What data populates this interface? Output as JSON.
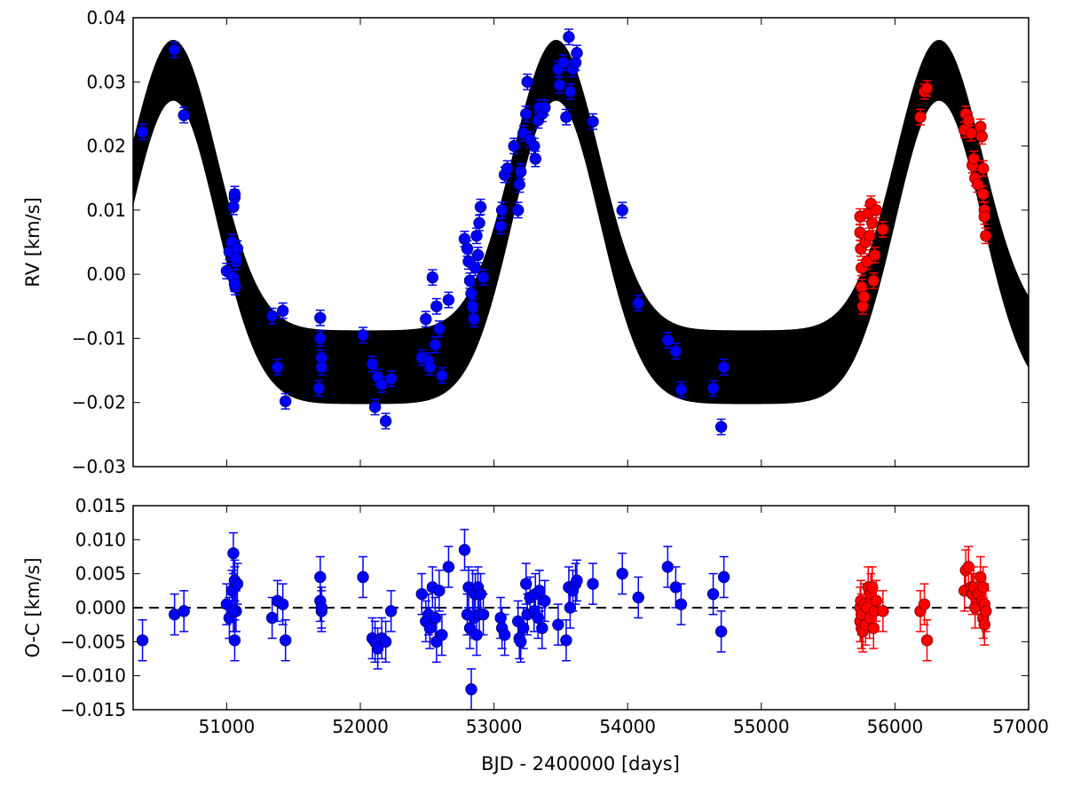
{
  "chart_data": [
    {
      "type": "scatter",
      "panel": "rv",
      "ylabel": "RV [km/s]",
      "xlim": [
        50300,
        57000
      ],
      "ylim": [
        -0.03,
        0.04
      ],
      "xticks": [
        51000,
        52000,
        53000,
        54000,
        55000,
        56000,
        57000
      ],
      "yticks": [
        -0.03,
        -0.02,
        -0.01,
        0.0,
        0.01,
        0.02,
        0.03,
        0.04
      ],
      "ytick_labels": [
        "−0.03",
        "−0.02",
        "−0.01",
        "0.00",
        "0.01",
        "0.02",
        "0.03",
        "0.04"
      ],
      "xtick_labels_shown": false,
      "model_band": {
        "color": "#000000",
        "period": 2865,
        "phase_peak_x": 50600,
        "center_min": -0.0145,
        "center_max": 0.0318,
        "width_at_min": 0.0115,
        "width_at_max": 0.0095
      },
      "series": [
        {
          "color": "#0000ff",
          "points": [
            [
              50370,
              0.0222
            ],
            [
              50610,
              0.035
            ],
            [
              50680,
              0.0248
            ],
            [
              51000,
              0.0005
            ],
            [
              51020,
              0.0035
            ],
            [
              51040,
              0.005
            ],
            [
              51050,
              0.0105
            ],
            [
              51060,
              0.012
            ],
            [
              51060,
              0.0125
            ],
            [
              51050,
              -0.0005
            ],
            [
              51065,
              -0.002
            ],
            [
              51070,
              0.002
            ],
            [
              51080,
              0.004
            ],
            [
              51070,
              0.0025
            ],
            [
              51060,
              -0.0015
            ],
            [
              51340,
              -0.0065
            ],
            [
              51380,
              -0.0145
            ],
            [
              51420,
              -0.0057
            ],
            [
              51440,
              -0.0198
            ],
            [
              51700,
              -0.0068
            ],
            [
              51700,
              -0.01
            ],
            [
              51710,
              -0.013
            ],
            [
              51710,
              -0.0145
            ],
            [
              51690,
              -0.0178
            ],
            [
              52020,
              -0.0095
            ],
            [
              52090,
              -0.014
            ],
            [
              52110,
              -0.0207
            ],
            [
              52130,
              -0.016
            ],
            [
              52160,
              -0.0172
            ],
            [
              52190,
              -0.0229
            ],
            [
              52230,
              -0.0163
            ],
            [
              52460,
              -0.013
            ],
            [
              52490,
              -0.007
            ],
            [
              52510,
              -0.0135
            ],
            [
              52520,
              -0.0145
            ],
            [
              52540,
              -0.0005
            ],
            [
              52560,
              -0.011
            ],
            [
              52570,
              -0.005
            ],
            [
              52590,
              -0.0085
            ],
            [
              52610,
              -0.0158
            ],
            [
              52660,
              -0.004
            ],
            [
              52780,
              0.0055
            ],
            [
              52800,
              0.004
            ],
            [
              52810,
              0.002
            ],
            [
              52820,
              -0.001
            ],
            [
              52830,
              -0.003
            ],
            [
              52840,
              -0.005
            ],
            [
              52850,
              -0.007
            ],
            [
              52860,
              0.001
            ],
            [
              52870,
              0.006
            ],
            [
              52880,
              0.003
            ],
            [
              52890,
              0.008
            ],
            [
              52900,
              0.0105
            ],
            [
              52920,
              -0.0005
            ],
            [
              53050,
              0.0075
            ],
            [
              53060,
              0.01
            ],
            [
              53080,
              0.0155
            ],
            [
              53100,
              0.0165
            ],
            [
              53150,
              0.02
            ],
            [
              53180,
              0.01
            ],
            [
              53190,
              0.014
            ],
            [
              53200,
              0.016
            ],
            [
              53220,
              0.022
            ],
            [
              53240,
              0.025
            ],
            [
              53250,
              0.03
            ],
            [
              53270,
              0.021
            ],
            [
              53300,
              0.02
            ],
            [
              53310,
              0.018
            ],
            [
              53330,
              0.024
            ],
            [
              53340,
              0.026
            ],
            [
              53360,
              0.025
            ],
            [
              53380,
              0.026
            ],
            [
              53480,
              0.032
            ],
            [
              53490,
              0.0295
            ],
            [
              53520,
              0.033
            ],
            [
              53540,
              0.0245
            ],
            [
              53560,
              0.037
            ],
            [
              53570,
              0.0285
            ],
            [
              53590,
              0.032
            ],
            [
              53610,
              0.033
            ],
            [
              53620,
              0.0345
            ],
            [
              53740,
              0.0238
            ],
            [
              53960,
              0.01
            ],
            [
              54080,
              -0.0045
            ],
            [
              54300,
              -0.0103
            ],
            [
              54360,
              -0.012
            ],
            [
              54400,
              -0.018
            ],
            [
              54640,
              -0.0178
            ],
            [
              54700,
              -0.0238
            ],
            [
              54720,
              -0.0145
            ]
          ]
        },
        {
          "color": "#ff0000",
          "points": [
            [
              55740,
              0.009
            ],
            [
              55740,
              0.0065
            ],
            [
              55745,
              0.004
            ],
            [
              55750,
              0.001
            ],
            [
              55750,
              -0.002
            ],
            [
              55760,
              -0.005
            ],
            [
              55770,
              -0.0035
            ],
            [
              55780,
              0.005
            ],
            [
              55790,
              0.002
            ],
            [
              55800,
              0.0095
            ],
            [
              55810,
              0.006
            ],
            [
              55820,
              0.011
            ],
            [
              55830,
              0.008
            ],
            [
              55840,
              -0.001
            ],
            [
              55850,
              0.003
            ],
            [
              55860,
              0.01
            ],
            [
              55910,
              0.007
            ],
            [
              56190,
              0.0245
            ],
            [
              56220,
              0.0285
            ],
            [
              56240,
              0.029
            ],
            [
              56520,
              0.0225
            ],
            [
              56530,
              0.025
            ],
            [
              56550,
              0.024
            ],
            [
              56570,
              0.022
            ],
            [
              56580,
              0.017
            ],
            [
              56590,
              0.018
            ],
            [
              56600,
              0.015
            ],
            [
              56620,
              0.014
            ],
            [
              56640,
              0.023
            ],
            [
              56650,
              0.0215
            ],
            [
              56660,
              0.0165
            ],
            [
              56660,
              0.0125
            ],
            [
              56670,
              0.01
            ],
            [
              56670,
              0.009
            ],
            [
              56680,
              0.006
            ]
          ]
        }
      ]
    },
    {
      "type": "scatter",
      "panel": "oc",
      "xlabel": "BJD - 2400000 [days]",
      "ylabel": "O-C [km/s]",
      "xlim": [
        50300,
        57000
      ],
      "ylim": [
        -0.015,
        0.015
      ],
      "xticks": [
        51000,
        52000,
        53000,
        54000,
        55000,
        56000,
        57000
      ],
      "xtick_labels": [
        "51000",
        "52000",
        "53000",
        "54000",
        "55000",
        "56000",
        "57000"
      ],
      "yticks": [
        -0.015,
        -0.01,
        -0.005,
        0.0,
        0.005,
        0.01,
        0.015
      ],
      "ytick_labels": [
        "−0.015",
        "−0.010",
        "−0.005",
        "0.000",
        "0.005",
        "0.010",
        "0.015"
      ],
      "zero_line": {
        "y": 0,
        "style": "dashed",
        "color": "#000000"
      },
      "error_bar": 0.003,
      "series": [
        {
          "color": "#0000ff",
          "points": [
            [
              50370,
              -0.0048
            ],
            [
              50610,
              -0.001
            ],
            [
              50680,
              -0.0005
            ],
            [
              51000,
              0.0005
            ],
            [
              51020,
              -0.0015
            ],
            [
              51040,
              0.0025
            ],
            [
              51050,
              0.008
            ],
            [
              51060,
              0.003
            ],
            [
              51060,
              0.004
            ],
            [
              51060,
              -0.0048
            ],
            [
              51070,
              -0.0005
            ],
            [
              51080,
              0.0035
            ],
            [
              51050,
              -0.0005
            ],
            [
              51340,
              -0.0015
            ],
            [
              51380,
              0.001
            ],
            [
              51420,
              0.0005
            ],
            [
              51440,
              -0.0048
            ],
            [
              51700,
              0.0045
            ],
            [
              51700,
              0.001
            ],
            [
              51710,
              -0.0005
            ],
            [
              51710,
              0.0
            ],
            [
              52020,
              0.0045
            ],
            [
              52090,
              -0.0045
            ],
            [
              52110,
              -0.005
            ],
            [
              52130,
              -0.006
            ],
            [
              52160,
              -0.0045
            ],
            [
              52190,
              -0.005
            ],
            [
              52230,
              -0.0005
            ],
            [
              52460,
              0.002
            ],
            [
              52490,
              -0.002
            ],
            [
              52510,
              -0.001
            ],
            [
              52520,
              -0.003
            ],
            [
              52540,
              0.003
            ],
            [
              52560,
              -0.0015
            ],
            [
              52570,
              -0.005
            ],
            [
              52590,
              0.0025
            ],
            [
              52610,
              -0.004
            ],
            [
              52660,
              0.006
            ],
            [
              52780,
              0.0085
            ],
            [
              52800,
              -0.001
            ],
            [
              52810,
              0.003
            ],
            [
              52820,
              -0.003
            ],
            [
              52830,
              -0.012
            ],
            [
              52840,
              0.0025
            ],
            [
              52850,
              -0.0015
            ],
            [
              52860,
              0.002
            ],
            [
              52870,
              -0.004
            ],
            [
              52880,
              0.003
            ],
            [
              52890,
              -0.001
            ],
            [
              52900,
              0.002
            ],
            [
              52920,
              -0.001
            ],
            [
              53050,
              -0.0015
            ],
            [
              53060,
              -0.003
            ],
            [
              53080,
              -0.004
            ],
            [
              53180,
              -0.002
            ],
            [
              53190,
              -0.0045
            ],
            [
              53200,
              -0.005
            ],
            [
              53220,
              -0.003
            ],
            [
              53240,
              0.0035
            ],
            [
              53250,
              -0.001
            ],
            [
              53270,
              0.0015
            ],
            [
              53300,
              -0.0005
            ],
            [
              53310,
              0.002
            ],
            [
              53330,
              -0.0015
            ],
            [
              53340,
              0.0025
            ],
            [
              53360,
              -0.003
            ],
            [
              53380,
              0.001
            ],
            [
              53480,
              -0.0025
            ],
            [
              53540,
              -0.0048
            ],
            [
              53560,
              0.003
            ],
            [
              53570,
              0.0
            ],
            [
              53590,
              0.0025
            ],
            [
              53610,
              0.0035
            ],
            [
              53620,
              0.004
            ],
            [
              53740,
              0.0035
            ],
            [
              53960,
              0.005
            ],
            [
              54080,
              0.0015
            ],
            [
              54300,
              0.006
            ],
            [
              54360,
              0.003
            ],
            [
              54400,
              0.0005
            ],
            [
              54640,
              0.002
            ],
            [
              54700,
              -0.0035
            ],
            [
              54720,
              0.0045
            ]
          ]
        },
        {
          "color": "#ff0000",
          "points": [
            [
              55740,
              0.0
            ],
            [
              55740,
              -0.002
            ],
            [
              55745,
              0.001
            ],
            [
              55750,
              -0.003
            ],
            [
              55750,
              -0.001
            ],
            [
              55760,
              -0.0035
            ],
            [
              55770,
              0.0005
            ],
            [
              55780,
              -0.0025
            ],
            [
              55790,
              0.0
            ],
            [
              55800,
              0.003
            ],
            [
              55810,
              -0.0015
            ],
            [
              55820,
              0.002
            ],
            [
              55830,
              0.003
            ],
            [
              55840,
              -0.003
            ],
            [
              55850,
              -0.0005
            ],
            [
              55860,
              0.001
            ],
            [
              55910,
              -0.0005
            ],
            [
              56190,
              -0.0005
            ],
            [
              56220,
              0.0005
            ],
            [
              56240,
              -0.0048
            ],
            [
              56520,
              0.0025
            ],
            [
              56530,
              0.0055
            ],
            [
              56550,
              0.006
            ],
            [
              56570,
              0.003
            ],
            [
              56580,
              0.002
            ],
            [
              56590,
              0.003
            ],
            [
              56600,
              0.0
            ],
            [
              56620,
              0.002
            ],
            [
              56640,
              0.0045
            ],
            [
              56650,
              0.001
            ],
            [
              56660,
              -0.0015
            ],
            [
              56660,
              0.003
            ],
            [
              56670,
              -0.0025
            ],
            [
              56670,
              0.0005
            ],
            [
              56680,
              -0.0005
            ]
          ]
        }
      ]
    }
  ]
}
